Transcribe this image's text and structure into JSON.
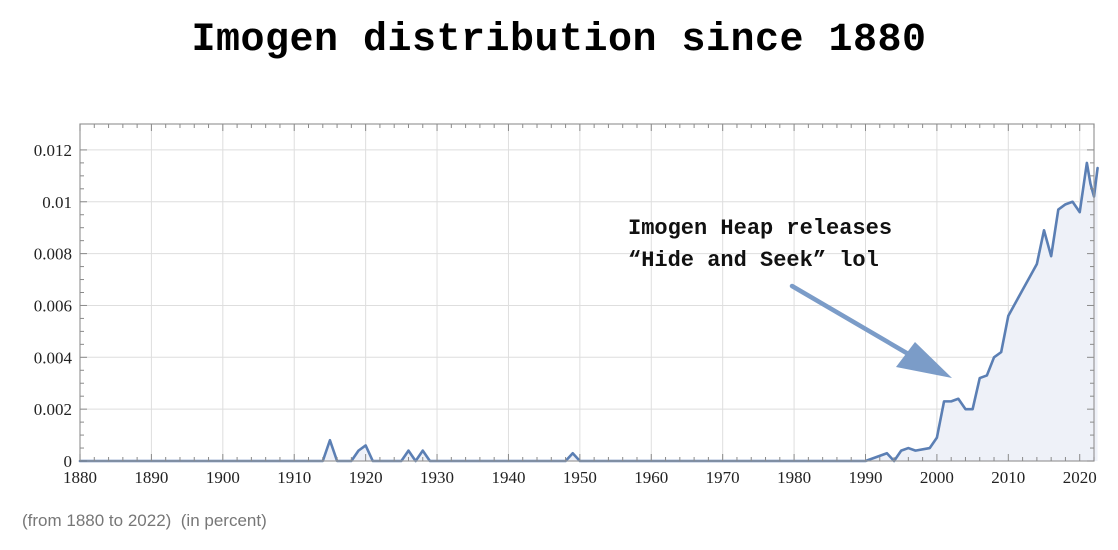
{
  "title": "Imogen distribution since 1880",
  "footnote": {
    "range": "(from 1880 to 2022)",
    "unit": "(in percent)"
  },
  "annotation": {
    "line1": "Imogen Heap releases",
    "line2": "“Hide and Seek” lol"
  },
  "colors": {
    "line": "#5b7fb4",
    "fill": "#eef1f8",
    "grid": "#dedede",
    "arrow": "#7b9cc8"
  },
  "chart_data": {
    "type": "area",
    "title": "Imogen distribution since 1880",
    "xlabel": "",
    "ylabel": "",
    "xlim": [
      1880,
      2022
    ],
    "ylim": [
      0,
      0.013
    ],
    "grid": true,
    "x_ticks": [
      1880,
      1890,
      1900,
      1910,
      1920,
      1930,
      1940,
      1950,
      1960,
      1970,
      1980,
      1990,
      2000,
      2010,
      2020
    ],
    "x_tick_labels": [
      "1880",
      "1890",
      "1900",
      "1910",
      "1920",
      "1930",
      "1940",
      "1950",
      "1960",
      "1970",
      "1980",
      "1990",
      "2000",
      "2010",
      "2020"
    ],
    "y_ticks": [
      0,
      0.002,
      0.004,
      0.006,
      0.008,
      0.01,
      0.012
    ],
    "y_tick_labels": [
      "0",
      "0.002",
      "0.004",
      "0.006",
      "0.008",
      "0.01",
      "0.012"
    ],
    "series": [
      {
        "points": [
          [
            1880,
            0
          ],
          [
            1914,
            0
          ],
          [
            1915,
            0.0008
          ],
          [
            1916,
            0
          ],
          [
            1918,
            0
          ],
          [
            1919,
            0.0004
          ],
          [
            1920,
            0.0006
          ],
          [
            1921,
            0
          ],
          [
            1925,
            0
          ],
          [
            1926,
            0.0004
          ],
          [
            1927,
            0
          ],
          [
            1928,
            0.0004
          ],
          [
            1929,
            0
          ],
          [
            1948,
            0
          ],
          [
            1949,
            0.0003
          ],
          [
            1950,
            0
          ],
          [
            1990,
            0
          ],
          [
            1993,
            0.0003
          ],
          [
            1994,
            0
          ],
          [
            1995,
            0.0004
          ],
          [
            1996,
            0.0005
          ],
          [
            1997,
            0.0004
          ],
          [
            1999,
            0.0005
          ],
          [
            2000,
            0.0009
          ],
          [
            2001,
            0.0023
          ],
          [
            2002,
            0.0023
          ],
          [
            2003,
            0.0024
          ],
          [
            2004,
            0.002
          ],
          [
            2005,
            0.002
          ],
          [
            2006,
            0.0032
          ],
          [
            2007,
            0.0033
          ],
          [
            2008,
            0.004
          ],
          [
            2009,
            0.0042
          ],
          [
            2010,
            0.0056
          ],
          [
            2011,
            0.0061
          ],
          [
            2012,
            0.0066
          ],
          [
            2013,
            0.0071
          ],
          [
            2014,
            0.0076
          ],
          [
            2015,
            0.0089
          ],
          [
            2016,
            0.0079
          ],
          [
            2017,
            0.0097
          ],
          [
            2018,
            0.0099
          ],
          [
            2019,
            0.01
          ],
          [
            2020,
            0.0096
          ],
          [
            2021,
            0.0115
          ],
          [
            2021.5,
            0.0107
          ],
          [
            2022,
            0.0102
          ],
          [
            2022.5,
            0.0113
          ]
        ]
      }
    ]
  }
}
